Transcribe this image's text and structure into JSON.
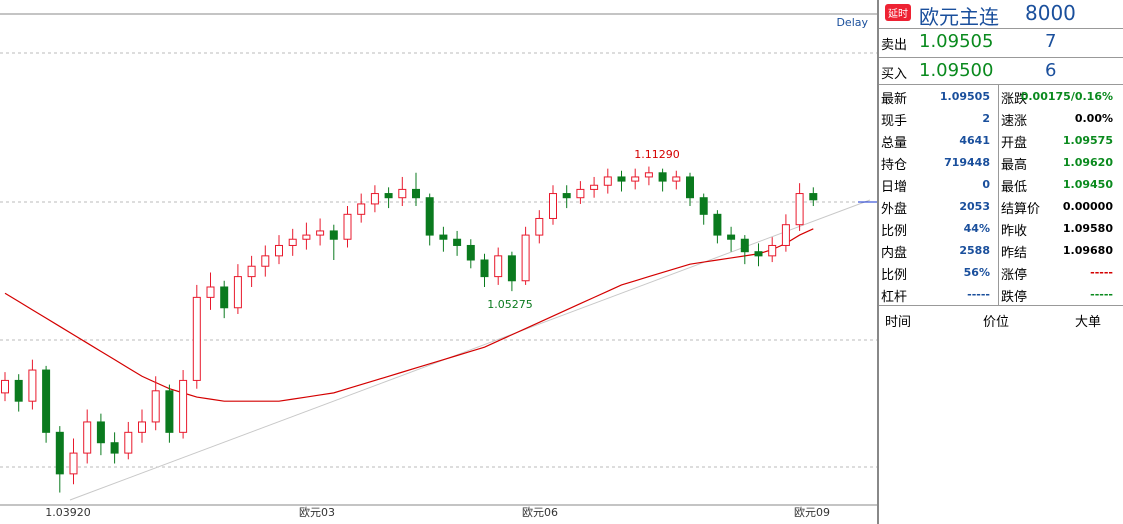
{
  "chart_data": {
    "type": "candlestick",
    "delay_label": "Delay",
    "ylim": [
      0.95,
      1.186
    ],
    "up_color": "#e8192c",
    "down_color": "#0a7a1e",
    "candles": [
      [
        1.004,
        1.014,
        1.0,
        1.01
      ],
      [
        1.01,
        1.013,
        0.995,
        1.0
      ],
      [
        1.0,
        1.02,
        0.996,
        1.015
      ],
      [
        1.015,
        1.017,
        0.98,
        0.985
      ],
      [
        0.985,
        0.988,
        0.956,
        0.965
      ],
      [
        0.965,
        0.982,
        0.96,
        0.975
      ],
      [
        0.975,
        0.996,
        0.97,
        0.99
      ],
      [
        0.99,
        0.994,
        0.974,
        0.98
      ],
      [
        0.98,
        0.985,
        0.97,
        0.975
      ],
      [
        0.975,
        0.99,
        0.972,
        0.985
      ],
      [
        0.985,
        0.996,
        0.98,
        0.99
      ],
      [
        0.99,
        1.012,
        0.986,
        1.005
      ],
      [
        1.005,
        1.008,
        0.98,
        0.985
      ],
      [
        0.985,
        1.015,
        0.982,
        1.01
      ],
      [
        1.01,
        1.056,
        1.006,
        1.05
      ],
      [
        1.05,
        1.062,
        1.044,
        1.055
      ],
      [
        1.055,
        1.058,
        1.04,
        1.045
      ],
      [
        1.045,
        1.066,
        1.042,
        1.06
      ],
      [
        1.06,
        1.07,
        1.055,
        1.065
      ],
      [
        1.065,
        1.075,
        1.06,
        1.07
      ],
      [
        1.07,
        1.08,
        1.066,
        1.075
      ],
      [
        1.075,
        1.083,
        1.07,
        1.078
      ],
      [
        1.078,
        1.086,
        1.073,
        1.08
      ],
      [
        1.08,
        1.088,
        1.075,
        1.082
      ],
      [
        1.082,
        1.085,
        1.068,
        1.078
      ],
      [
        1.078,
        1.094,
        1.074,
        1.09
      ],
      [
        1.09,
        1.1,
        1.086,
        1.095
      ],
      [
        1.095,
        1.104,
        1.091,
        1.1
      ],
      [
        1.1,
        1.103,
        1.093,
        1.098
      ],
      [
        1.098,
        1.108,
        1.094,
        1.102
      ],
      [
        1.102,
        1.11,
        1.094,
        1.098
      ],
      [
        1.098,
        1.1,
        1.075,
        1.08
      ],
      [
        1.08,
        1.084,
        1.072,
        1.078
      ],
      [
        1.078,
        1.082,
        1.07,
        1.075
      ],
      [
        1.075,
        1.078,
        1.064,
        1.068
      ],
      [
        1.068,
        1.071,
        1.055,
        1.06
      ],
      [
        1.06,
        1.074,
        1.056,
        1.07
      ],
      [
        1.07,
        1.072,
        1.053,
        1.058
      ],
      [
        1.058,
        1.084,
        1.056,
        1.08
      ],
      [
        1.08,
        1.092,
        1.076,
        1.088
      ],
      [
        1.088,
        1.104,
        1.085,
        1.1
      ],
      [
        1.1,
        1.104,
        1.093,
        1.098
      ],
      [
        1.098,
        1.106,
        1.095,
        1.102
      ],
      [
        1.102,
        1.108,
        1.098,
        1.104
      ],
      [
        1.104,
        1.112,
        1.1,
        1.108
      ],
      [
        1.108,
        1.111,
        1.101,
        1.106
      ],
      [
        1.106,
        1.112,
        1.102,
        1.108
      ],
      [
        1.108,
        1.113,
        1.104,
        1.11
      ],
      [
        1.11,
        1.112,
        1.101,
        1.106
      ],
      [
        1.106,
        1.111,
        1.102,
        1.108
      ],
      [
        1.108,
        1.11,
        1.094,
        1.098
      ],
      [
        1.098,
        1.1,
        1.085,
        1.09
      ],
      [
        1.09,
        1.092,
        1.076,
        1.08
      ],
      [
        1.08,
        1.084,
        1.072,
        1.078
      ],
      [
        1.078,
        1.08,
        1.066,
        1.072
      ],
      [
        1.072,
        1.076,
        1.065,
        1.07
      ],
      [
        1.07,
        1.079,
        1.067,
        1.075
      ],
      [
        1.075,
        1.09,
        1.072,
        1.085
      ],
      [
        1.085,
        1.105,
        1.082,
        1.1
      ],
      [
        1.1,
        1.103,
        1.094,
        1.097
      ]
    ],
    "series": [
      {
        "color": "#d40000",
        "values": [
          1.052,
          1.048,
          1.044,
          1.04,
          1.036,
          1.032,
          1.028,
          1.024,
          1.02,
          1.016,
          1.012,
          1.009,
          1.006,
          1.004,
          1.002,
          1.001,
          1.0,
          1.0,
          1.0,
          1.0,
          1.0,
          1.001,
          1.002,
          1.003,
          1.004,
          1.006,
          1.008,
          1.01,
          1.012,
          1.014,
          1.016,
          1.018,
          1.02,
          1.022,
          1.024,
          1.026,
          1.029,
          1.032,
          1.035,
          1.038,
          1.041,
          1.044,
          1.047,
          1.05,
          1.053,
          1.056,
          1.058,
          1.06,
          1.062,
          1.064,
          1.066,
          1.067,
          1.068,
          1.069,
          1.07,
          1.071,
          1.073,
          1.076,
          1.08,
          1.083
        ]
      }
    ],
    "annotations": [
      "1.11290",
      "1.05275",
      "1.03920"
    ],
    "x_labels": [
      "欧元03",
      "欧元06",
      "欧元09"
    ]
  },
  "panel": {
    "badge": "延时",
    "title": "欧元主连",
    "code": "8000",
    "sell": {
      "label": "卖出",
      "price": "1.09505",
      "volume": "7"
    },
    "buy": {
      "label": "买入",
      "price": "1.09500",
      "volume": "6"
    },
    "stats": [
      [
        "最新",
        "1.09505",
        "涨跌",
        "0.00175/0.16%"
      ],
      [
        "现手",
        "2",
        "速涨",
        "0.00%"
      ],
      [
        "总量",
        "4641",
        "开盘",
        "1.09575"
      ],
      [
        "持仓",
        "719448",
        "最高",
        "1.09620"
      ],
      [
        "日增",
        "0",
        "最低",
        "1.09450"
      ],
      [
        "外盘",
        "2053",
        "结算价",
        "0.00000"
      ],
      [
        "比例",
        "44%",
        "昨收",
        "1.09580"
      ],
      [
        "内盘",
        "2588",
        "昨结",
        "1.09680"
      ],
      [
        "比例",
        "56%",
        "涨停",
        "-----"
      ],
      [
        "杠杆",
        "-----",
        "跌停",
        "-----"
      ]
    ],
    "trades_header": [
      "时间",
      "价位",
      "大单"
    ]
  }
}
